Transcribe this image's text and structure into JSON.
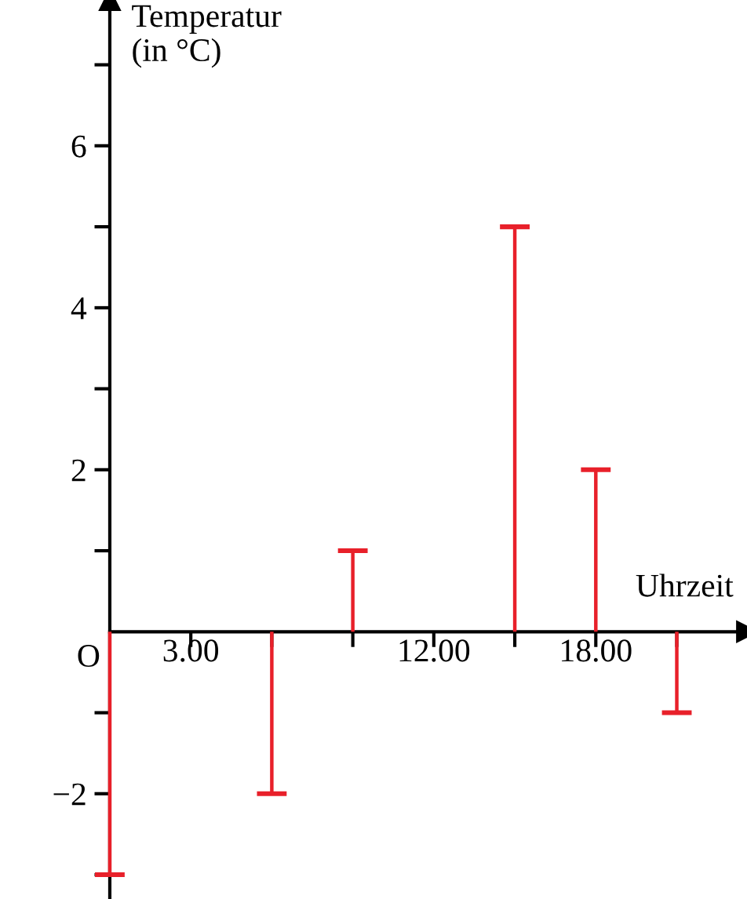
{
  "chart_data": {
    "type": "bar",
    "ylabel": "Temperatur\n(in °C)",
    "xlabel": "Uhrzeit",
    "x": [
      0,
      6,
      9,
      15,
      18,
      21
    ],
    "values": [
      -3,
      -2,
      1,
      5,
      2,
      -1
    ],
    "color": "#e8202a",
    "xlim": [
      0,
      23.6
    ],
    "ylim": [
      -3.3,
      7.8
    ],
    "xticks": [
      {
        "value": 3,
        "label": "3.00"
      },
      {
        "value": 6,
        "label": null
      },
      {
        "value": 9,
        "label": null
      },
      {
        "value": 12,
        "label": "12.00"
      },
      {
        "value": 15,
        "label": null
      },
      {
        "value": 18,
        "label": "18.00"
      },
      {
        "value": 21,
        "label": null
      }
    ],
    "yticks": [
      {
        "value": -3,
        "label": null
      },
      {
        "value": -2,
        "label": "−2"
      },
      {
        "value": -1,
        "label": null
      },
      {
        "value": 1,
        "label": null
      },
      2,
      {
        "value": 3,
        "label": null
      },
      4,
      {
        "value": 5,
        "label": null
      },
      6,
      {
        "value": 7,
        "label": null
      }
    ],
    "annotations": [
      "O"
    ],
    "grid": false
  }
}
